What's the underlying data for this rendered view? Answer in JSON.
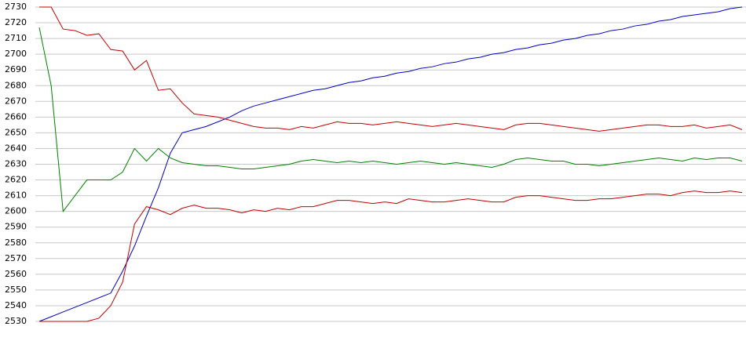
{
  "chart_data": {
    "type": "line",
    "categories": [
      null,
      null,
      null,
      null,
      null,
      null,
      null,
      null,
      null,
      null,
      null,
      null,
      null,
      null,
      null,
      null,
      null,
      null,
      null,
      null,
      null,
      null,
      null,
      null,
      null,
      null,
      null,
      null,
      null,
      null,
      null,
      null,
      null,
      null,
      null,
      null,
      null,
      null,
      null,
      null,
      null,
      null,
      null,
      null,
      null,
      null,
      null,
      null,
      null,
      null,
      null,
      null,
      null,
      null,
      null,
      null,
      null,
      null,
      null,
      null
    ],
    "ylim": [
      2530,
      2730
    ],
    "yticks": [
      2530,
      2540,
      2550,
      2560,
      2570,
      2580,
      2590,
      2600,
      2610,
      2620,
      2630,
      2640,
      2650,
      2660,
      2670,
      2680,
      2690,
      2700,
      2710,
      2720,
      2730
    ],
    "grid": true,
    "series": [
      {
        "color": "#0000c0",
        "values": [
          2530,
          2533,
          2536,
          2539,
          2542,
          2545,
          2548,
          2562,
          2578,
          2597,
          2615,
          2637,
          2650,
          2652,
          2654,
          2657,
          2660,
          2664,
          2667,
          2669,
          2671,
          2673,
          2675,
          2677,
          2678,
          2680,
          2682,
          2683,
          2685,
          2686,
          2688,
          2689,
          2691,
          2692,
          2694,
          2695,
          2697,
          2698,
          2700,
          2701,
          2703,
          2704,
          2706,
          2707,
          2709,
          2710,
          2712,
          2713,
          2715,
          2716,
          2718,
          2719,
          2721,
          2722,
          2724,
          2725,
          2726,
          2727,
          2729,
          2730
        ]
      },
      {
        "color": "#008000",
        "values": [
          2717,
          2680,
          2600,
          2610,
          2620,
          2620,
          2620,
          2625,
          2640,
          2632,
          2640,
          2634,
          2631,
          2630,
          2629,
          2629,
          2628,
          2627,
          2627,
          2628,
          2629,
          2630,
          2632,
          2633,
          2632,
          2631,
          2632,
          2631,
          2632,
          2631,
          2630,
          2631,
          2632,
          2631,
          2630,
          2631,
          2630,
          2629,
          2628,
          2630,
          2633,
          2634,
          2633,
          2632,
          2632,
          2630,
          2630,
          2629,
          2630,
          2631,
          2632,
          2633,
          2634,
          2633,
          2632,
          2634,
          2633,
          2634,
          2634,
          2632
        ]
      },
      {
        "color": "#c00000",
        "values": [
          2730,
          2730,
          2716,
          2715,
          2712,
          2713,
          2703,
          2702,
          2690,
          2696,
          2677,
          2678,
          2669,
          2662,
          2661,
          2660,
          2658,
          2656,
          2654,
          2653,
          2653,
          2652,
          2654,
          2653,
          2655,
          2657,
          2656,
          2656,
          2655,
          2656,
          2657,
          2656,
          2655,
          2654,
          2655,
          2656,
          2655,
          2654,
          2653,
          2652,
          2655,
          2656,
          2656,
          2655,
          2654,
          2653,
          2652,
          2651,
          2652,
          2653,
          2654,
          2655,
          2655,
          2654,
          2654,
          2655,
          2653,
          2654,
          2655,
          2652
        ]
      },
      {
        "color": "#c00000",
        "values": [
          2530,
          2530,
          2530,
          2530,
          2530,
          2532,
          2540,
          2555,
          2592,
          2603,
          2601,
          2598,
          2602,
          2604,
          2602,
          2602,
          2601,
          2599,
          2601,
          2600,
          2602,
          2601,
          2603,
          2603,
          2605,
          2607,
          2607,
          2606,
          2605,
          2606,
          2605,
          2608,
          2607,
          2606,
          2606,
          2607,
          2608,
          2607,
          2606,
          2606,
          2609,
          2610,
          2610,
          2609,
          2608,
          2607,
          2607,
          2608,
          2608,
          2609,
          2610,
          2611,
          2611,
          2610,
          2612,
          2613,
          2612,
          2612,
          2613,
          2612
        ]
      }
    ]
  }
}
